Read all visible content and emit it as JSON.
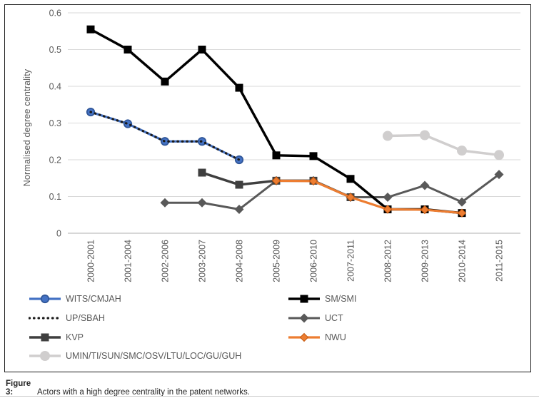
{
  "figure_caption": {
    "label": "Figure 3:",
    "text": "Actors with a high degree centrality in the patent networks."
  },
  "chart_data": {
    "type": "line",
    "title": "",
    "xlabel": "",
    "ylabel": "Normalised degree centrality",
    "ylim": [
      0,
      0.6
    ],
    "yticks": [
      0.6,
      0.5,
      0.4,
      0.3,
      0.2,
      0.1,
      0
    ],
    "grid": "horizontal",
    "gridline_color": "#d9d9d9",
    "axis_line_color": "#bfbfbf",
    "tick_label_color": "#595959",
    "categories": [
      "2000-2001",
      "2001-2004",
      "2002-2006",
      "2003-2007",
      "2004-2008",
      "2005-2009",
      "2006-2010",
      "2007-2011",
      "2008-2012",
      "2009-2013",
      "2010-2014",
      "2011-2015"
    ],
    "series": [
      {
        "name": "UCT",
        "color": "#595959",
        "marker": "diamond",
        "marker_size": 11,
        "line_width": 3,
        "dash": "solid",
        "values": [
          null,
          null,
          0.083,
          0.083,
          0.065,
          0.143,
          0.143,
          0.098,
          0.098,
          0.13,
          0.085,
          0.16
        ]
      },
      {
        "name": "KVP",
        "color": "#3f3f3f",
        "marker": "square",
        "marker_size": 11,
        "line_width": 3.5,
        "dash": "solid",
        "values": [
          null,
          null,
          null,
          0.165,
          0.132,
          0.143,
          0.143,
          0.098,
          null,
          null,
          null,
          null
        ]
      },
      {
        "name": "SM/SMI",
        "color": "#000000",
        "marker": "square",
        "marker_size": 11,
        "line_width": 3.5,
        "dash": "solid",
        "values": [
          0.555,
          0.5,
          0.413,
          0.5,
          0.396,
          0.212,
          0.21,
          0.148,
          0.065,
          0.065,
          0.055,
          null
        ]
      },
      {
        "name": "NWU",
        "color": "#ed7d31",
        "marker": "diamond",
        "marker_size": 9,
        "marker_stroke": "#c55a11",
        "line_width": 3.2,
        "dash": "solid",
        "values": [
          null,
          null,
          null,
          null,
          null,
          0.143,
          0.142,
          0.098,
          0.065,
          0.064,
          0.055,
          null
        ]
      },
      {
        "name": "WITS/CMJAH",
        "color": "#4472c4",
        "marker": "circle",
        "marker_size": 10.5,
        "marker_stroke": "#2f5597",
        "line_width": 3.2,
        "dash": "solid",
        "values": [
          0.33,
          0.298,
          0.25,
          0.25,
          0.2,
          null,
          null,
          null,
          null,
          null,
          null,
          null
        ]
      },
      {
        "name": "UP/SBAH",
        "color": "#1a1a1a",
        "marker": "none",
        "marker_size": 0,
        "line_width": 3.2,
        "dash": "dotted",
        "values": [
          0.33,
          0.298,
          0.25,
          0.25,
          0.2,
          null,
          null,
          null,
          null,
          null,
          null,
          null
        ]
      },
      {
        "name": "UMIN/TI/SUN/SMC/OSV/LTU/LOC/GU/GUH",
        "color": "#d0cece",
        "marker": "circle",
        "marker_size": 14,
        "line_width": 3.5,
        "dash": "solid",
        "values": [
          null,
          null,
          null,
          null,
          null,
          null,
          null,
          null,
          0.265,
          0.267,
          0.225,
          0.213
        ]
      }
    ],
    "legend": {
      "position": "bottom",
      "left_column": [
        "WITS/CMJAH",
        "UP/SBAH",
        "KVP",
        "UMIN/TI/SUN/SMC/OSV/LTU/LOC/GU/GUH"
      ],
      "right_column": [
        "SM/SMI",
        "UCT",
        "NWU"
      ]
    }
  }
}
